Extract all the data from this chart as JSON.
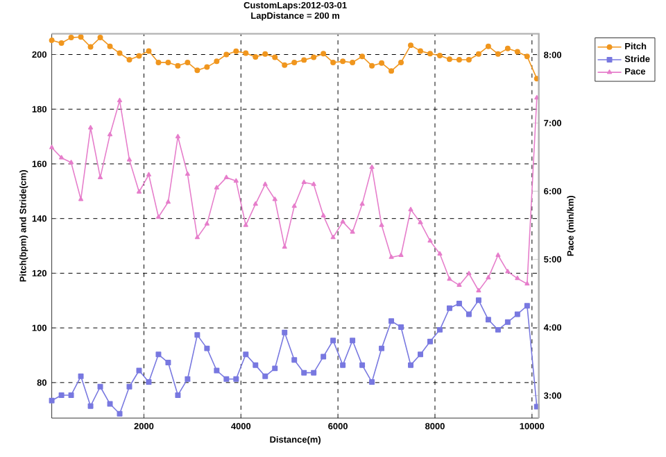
{
  "chart_data": {
    "type": "line",
    "title": "CustomLaps:2012-03-01",
    "subtitle": "LapDistance = 200 m",
    "xlabel": "Distance(m)",
    "ylabel": "Pitch(bpm) and Stride(cm)",
    "y2label": "Pace (min/km)",
    "x": [
      100,
      300,
      500,
      700,
      900,
      1100,
      1300,
      1500,
      1700,
      1900,
      2100,
      2300,
      2500,
      2700,
      2900,
      3100,
      3300,
      3500,
      3700,
      3900,
      4100,
      4300,
      4500,
      4700,
      4900,
      5100,
      5300,
      5500,
      5700,
      5900,
      6100,
      6300,
      6500,
      6700,
      6900,
      7100,
      7300,
      7500,
      7700,
      7900,
      8100,
      8300,
      8500,
      8700,
      8900,
      9100,
      9300,
      9500,
      9700,
      9900,
      10100
    ],
    "series": [
      {
        "name": "Pitch",
        "color": "#f0961e",
        "marker": "circle",
        "values": [
          205.2,
          204.2,
          206.2,
          206.4,
          202.8,
          206.2,
          203.0,
          200.5,
          198.1,
          199.5,
          201.3,
          197.1,
          197.1,
          195.9,
          197.1,
          194.2,
          195.4,
          197.5,
          200,
          201.2,
          200.5,
          199.1,
          200.2,
          199,
          196.1,
          197.1,
          198,
          199,
          200.3,
          197.1,
          197.5,
          197.1,
          199.3,
          195.9,
          196.9,
          194,
          197.1,
          203.4,
          201.3,
          200.3,
          199.6,
          198.3,
          198.1,
          198.1,
          200.2,
          203,
          200.2,
          202.2,
          201,
          199.3,
          191.2
        ]
      },
      {
        "name": "Stride",
        "color": "#7878e0",
        "marker": "square",
        "values": [
          73.4,
          75.4,
          75.4,
          82.3,
          71.4,
          78.5,
          72.2,
          68.6,
          78.5,
          84.4,
          80.2,
          90.3,
          87.3,
          75.4,
          81.3,
          97.4,
          92.5,
          84.4,
          81.3,
          81.3,
          90.3,
          86.4,
          82.3,
          85.2,
          98.3,
          88.3,
          83.6,
          83.6,
          89.5,
          95.4,
          86.4,
          95.4,
          86.4,
          80.2,
          92.5,
          102.5,
          100.3,
          86.4,
          90.3,
          95.0,
          99.3,
          107.2,
          108.9,
          105.0,
          110.1,
          103.0,
          99.3,
          102.1,
          105.0,
          108.1,
          71.2
        ]
      },
      {
        "name": "Pace",
        "color": "#e67ecb",
        "marker": "triangle",
        "axis": "y2",
        "values": [
          6.64,
          6.49,
          6.42,
          5.88,
          6.93,
          6.2,
          6.83,
          7.33,
          6.46,
          5.99,
          6.24,
          5.62,
          5.84,
          6.8,
          6.25,
          5.32,
          5.52,
          6.05,
          6.2,
          6.15,
          5.5,
          5.81,
          6.1,
          5.88,
          5.18,
          5.78,
          6.13,
          6.1,
          5.64,
          5.32,
          5.55,
          5.4,
          5.81,
          6.35,
          5.5,
          5.03,
          5.06,
          5.73,
          5.54,
          5.27,
          5.08,
          4.71,
          4.62,
          4.79,
          4.54,
          4.73,
          5.06,
          4.82,
          4.72,
          4.64,
          7.37
        ]
      }
    ],
    "xlim": [
      100,
      10140
    ],
    "xticks": [
      2000,
      4000,
      6000,
      8000,
      10000
    ],
    "ylim": [
      67,
      207.6
    ],
    "yticks": [
      80,
      100,
      120,
      140,
      160,
      180,
      200
    ],
    "y2lim": [
      2.67,
      8.31
    ],
    "y2ticks": [
      {
        "value": 3,
        "label": "3:00"
      },
      {
        "value": 4,
        "label": "4:00"
      },
      {
        "value": 5,
        "label": "5:00"
      },
      {
        "value": 6,
        "label": "6:00"
      },
      {
        "value": 7,
        "label": "7:00"
      },
      {
        "value": 8,
        "label": "8:00"
      }
    ],
    "grid": true,
    "legend": "top right"
  }
}
